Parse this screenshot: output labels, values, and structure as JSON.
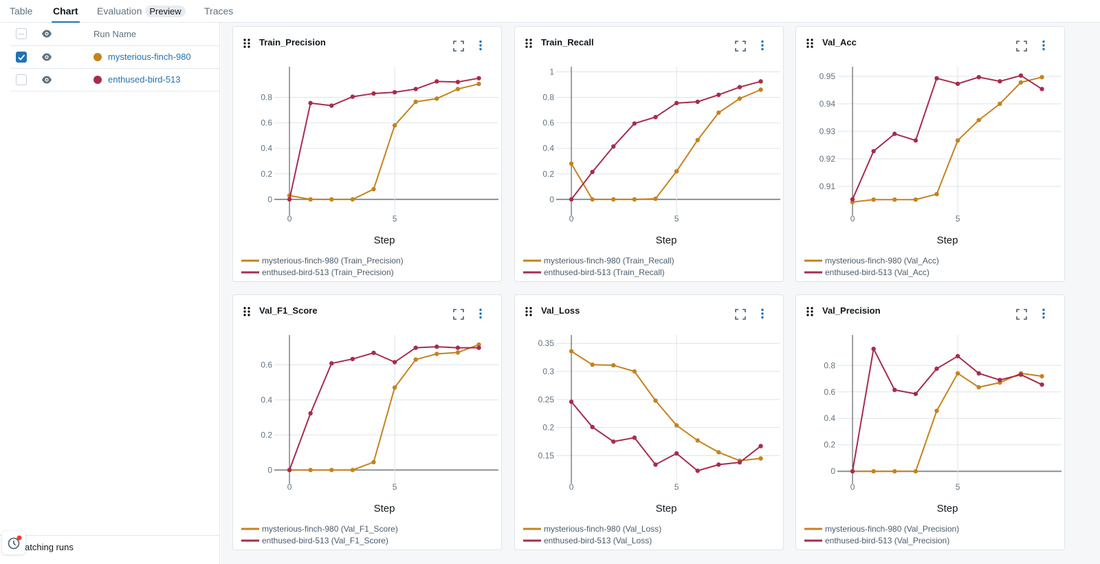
{
  "tabs": [
    {
      "label": "Table"
    },
    {
      "label": "Chart",
      "active": true
    },
    {
      "label": "Evaluation",
      "badge": "Preview"
    },
    {
      "label": "Traces"
    }
  ],
  "runs_table": {
    "header": "Run Name",
    "rows": [
      {
        "name": "mysterious-finch-980",
        "color": "#c4831e",
        "checked": true,
        "visible": true
      },
      {
        "name": "enthused-bird-513",
        "color": "#a82c4c",
        "checked": false,
        "visible": true
      }
    ]
  },
  "status": {
    "text": "atching runs",
    "icon": "clock-icon",
    "notification": true
  },
  "colors": {
    "accent": "#2272b4",
    "run1": "#c4831e",
    "run2": "#a82c4c"
  },
  "chart_data": [
    {
      "type": "line",
      "title": "Train_Precision",
      "xlabel": "Step",
      "ylabel": "",
      "x": [
        0,
        1,
        2,
        3,
        4,
        5,
        6,
        7,
        8,
        9
      ],
      "xticks": [
        0,
        5
      ],
      "ylim": [
        -0.06,
        1.04
      ],
      "yticks": [
        0,
        0.2,
        0.4,
        0.6,
        0.8
      ],
      "yticklabels": [
        "0",
        "0.2",
        "0.4",
        "0.6",
        "0.8"
      ],
      "grid": true,
      "legend": "bottom",
      "series": [
        {
          "name": "mysterious-finch-980 (Train_Precision)",
          "values": [
            0.03,
            0,
            0,
            0,
            0.08,
            0.58,
            0.765,
            0.79,
            0.865,
            0.905
          ]
        },
        {
          "name": "enthused-bird-513 (Train_Precision)",
          "values": [
            0,
            0.755,
            0.735,
            0.805,
            0.83,
            0.84,
            0.865,
            0.925,
            0.92,
            0.95
          ]
        }
      ]
    },
    {
      "type": "line",
      "title": "Train_Recall",
      "xlabel": "Step",
      "ylabel": "",
      "x": [
        0,
        1,
        2,
        3,
        4,
        5,
        6,
        7,
        8,
        9
      ],
      "xticks": [
        0,
        5
      ],
      "ylim": [
        -0.06,
        1.04
      ],
      "yticks": [
        0,
        0.2,
        0.4,
        0.6,
        0.8,
        1
      ],
      "yticklabels": [
        "0",
        "0.2",
        "0.4",
        "0.6",
        "0.8",
        "1"
      ],
      "grid": true,
      "legend": "bottom",
      "series": [
        {
          "name": "mysterious-finch-980 (Train_Recall)",
          "values": [
            0.28,
            0,
            0,
            0,
            0.005,
            0.22,
            0.465,
            0.68,
            0.79,
            0.86
          ]
        },
        {
          "name": "enthused-bird-513 (Train_Recall)",
          "values": [
            0,
            0.215,
            0.415,
            0.595,
            0.645,
            0.755,
            0.765,
            0.82,
            0.88,
            0.925
          ]
        }
      ]
    },
    {
      "type": "line",
      "title": "Val_Acc",
      "xlabel": "Step",
      "ylabel": "",
      "x": [
        0,
        1,
        2,
        3,
        4,
        5,
        6,
        7,
        8,
        9
      ],
      "xticks": [
        0,
        5
      ],
      "ylim": [
        0.9025,
        0.9535
      ],
      "yticks": [
        0.91,
        0.92,
        0.93,
        0.94,
        0.95
      ],
      "yticklabels": [
        "0.91",
        "0.92",
        "0.93",
        "0.94",
        "0.95"
      ],
      "grid": true,
      "legend": "bottom",
      "series": [
        {
          "name": "mysterious-finch-980 (Val_Acc)",
          "values": [
            0.9043,
            0.9052,
            0.9052,
            0.9052,
            0.9072,
            0.9267,
            0.9341,
            0.94,
            0.9478,
            0.9497
          ]
        },
        {
          "name": "enthused-bird-513 (Val_Acc)",
          "values": [
            0.9053,
            0.9228,
            0.9291,
            0.9267,
            0.9493,
            0.9473,
            0.9497,
            0.9482,
            0.9503,
            0.9454
          ]
        }
      ]
    },
    {
      "type": "line",
      "title": "Val_F1_Score",
      "xlabel": "Step",
      "ylabel": "",
      "x": [
        0,
        1,
        2,
        3,
        4,
        5,
        6,
        7,
        8,
        9
      ],
      "xticks": [
        0,
        5
      ],
      "ylim": [
        -0.03,
        0.77
      ],
      "yticks": [
        0,
        0.2,
        0.4,
        0.6
      ],
      "yticklabels": [
        "0",
        "0.2",
        "0.4",
        "0.6"
      ],
      "grid": true,
      "legend": "bottom",
      "series": [
        {
          "name": "mysterious-finch-980 (Val_F1_Score)",
          "values": [
            0,
            0,
            0,
            0,
            0.045,
            0.47,
            0.63,
            0.662,
            0.67,
            0.715
          ]
        },
        {
          "name": "enthused-bird-513 (Val_F1_Score)",
          "values": [
            0,
            0.323,
            0.608,
            0.633,
            0.668,
            0.615,
            0.697,
            0.703,
            0.697,
            0.697
          ]
        }
      ]
    },
    {
      "type": "line",
      "title": "Val_Loss",
      "xlabel": "Step",
      "ylabel": "",
      "x": [
        0,
        1,
        2,
        3,
        4,
        5,
        6,
        7,
        8,
        9
      ],
      "xticks": [
        0,
        5
      ],
      "ylim": [
        0.115,
        0.365
      ],
      "yticks": [
        0.15,
        0.2,
        0.25,
        0.3,
        0.35
      ],
      "yticklabels": [
        "0.15",
        "0.2",
        "0.25",
        "0.3",
        "0.35"
      ],
      "grid": true,
      "legend": "bottom",
      "series": [
        {
          "name": "mysterious-finch-980 (Val_Loss)",
          "values": [
            0.336,
            0.312,
            0.311,
            0.3,
            0.248,
            0.204,
            0.177,
            0.156,
            0.141,
            0.145
          ]
        },
        {
          "name": "enthused-bird-513 (Val_Loss)",
          "values": [
            0.246,
            0.201,
            0.175,
            0.182,
            0.134,
            0.154,
            0.123,
            0.134,
            0.138,
            0.167
          ]
        }
      ]
    },
    {
      "type": "line",
      "title": "Val_Precision",
      "xlabel": "Step",
      "ylabel": "",
      "x": [
        0,
        1,
        2,
        3,
        4,
        5,
        6,
        7,
        8,
        9
      ],
      "xticks": [
        0,
        5
      ],
      "ylim": [
        -0.03,
        1.03
      ],
      "yticks": [
        0,
        0.2,
        0.4,
        0.6,
        0.8
      ],
      "yticklabels": [
        "0",
        "0.2",
        "0.4",
        "0.6",
        "0.8"
      ],
      "grid": true,
      "legend": "bottom",
      "series": [
        {
          "name": "mysterious-finch-980 (Val_Precision)",
          "values": [
            0,
            0,
            0,
            0,
            0.457,
            0.74,
            0.635,
            0.67,
            0.74,
            0.718
          ]
        },
        {
          "name": "enthused-bird-513 (Val_Precision)",
          "values": [
            0,
            0.925,
            0.615,
            0.585,
            0.775,
            0.87,
            0.74,
            0.69,
            0.73,
            0.655
          ]
        }
      ]
    }
  ]
}
